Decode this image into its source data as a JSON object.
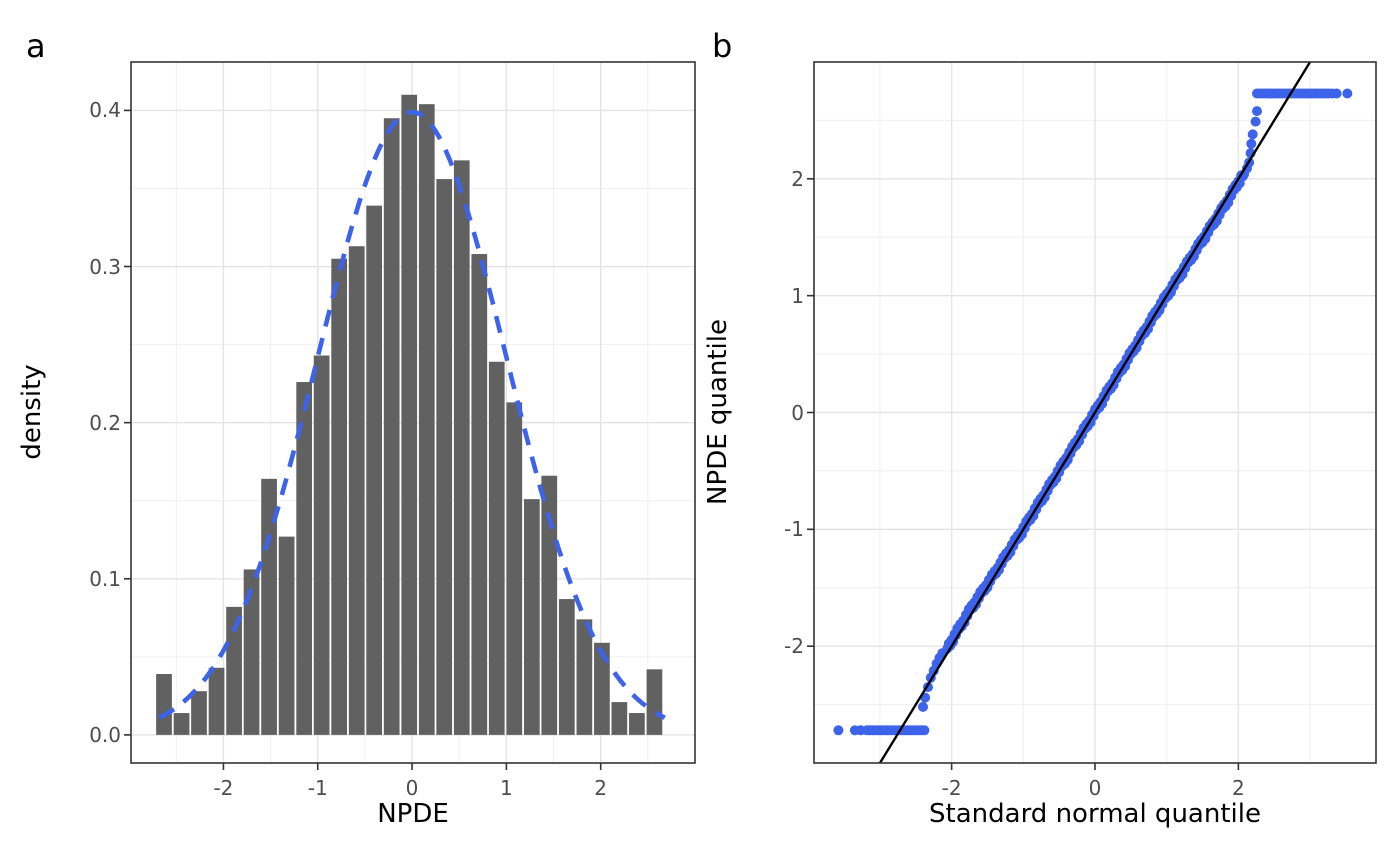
{
  "figure": {
    "panel_a_letter": "a",
    "panel_b_letter": "b",
    "background": "#FFFFFF",
    "colors": {
      "bar_fill": "#616161",
      "blue": "#3D63EB",
      "reference_line": "#000000",
      "grid_major": "#E4E4E4",
      "grid_minor": "#EFEFEF",
      "panel_border": "#333333",
      "tick_mark": "#333333",
      "tick_label": "#4D4D4D",
      "axis_title": "#000000"
    }
  },
  "chart_data": [
    {
      "id": "panel_a",
      "type": "bar",
      "subtype": "histogram_with_normal_density_overlay",
      "title": "",
      "xlabel": "NPDE",
      "ylabel": "density",
      "xlim": [
        -2.98,
        3.0
      ],
      "ylim": [
        -0.018,
        0.431
      ],
      "grid": true,
      "x_major_ticks": [
        -2,
        -1,
        0,
        1,
        2
      ],
      "x_tick_labels": [
        "-2",
        "-1",
        "0",
        "1",
        "2"
      ],
      "x_minor_ticks": [
        -2.5,
        -1.5,
        -0.5,
        0.5,
        1.5,
        2.5
      ],
      "y_major_ticks": [
        0,
        0.1,
        0.2,
        0.3,
        0.4
      ],
      "y_tick_labels": [
        "0.0",
        "0.1",
        "0.2",
        "0.3",
        "0.4"
      ],
      "y_minor_ticks": [
        0.05,
        0.15,
        0.25,
        0.35
      ],
      "binwidth": 0.1857,
      "bin_centers": [
        -2.63,
        -2.444,
        -2.259,
        -2.073,
        -1.887,
        -1.702,
        -1.516,
        -1.33,
        -1.144,
        -0.959,
        -0.773,
        -0.587,
        -0.402,
        -0.216,
        -0.03,
        0.156,
        0.341,
        0.527,
        0.713,
        0.898,
        1.084,
        1.27,
        1.455,
        1.641,
        1.827,
        2.013,
        2.198,
        2.384,
        2.57
      ],
      "densities": [
        0.039,
        0.014,
        0.028,
        0.043,
        0.082,
        0.106,
        0.164,
        0.127,
        0.226,
        0.243,
        0.305,
        0.313,
        0.339,
        0.395,
        0.41,
        0.404,
        0.356,
        0.368,
        0.308,
        0.239,
        0.213,
        0.151,
        0.166,
        0.087,
        0.074,
        0.059,
        0.021,
        0.014,
        0.042
      ],
      "normal_curve": {
        "mean": 0,
        "sd": 1,
        "x_from": -2.68,
        "x_to": 2.68,
        "style": "dashed",
        "peak_density": 0.399
      }
    },
    {
      "id": "panel_b",
      "type": "scatter",
      "subtype": "qq_plot",
      "title": "",
      "xlabel": "Standard normal quantile",
      "ylabel": "NPDE quantile",
      "xlim": [
        -3.92,
        3.92
      ],
      "ylim": [
        -3.0,
        3.0
      ],
      "grid": true,
      "x_major_ticks": [
        -2,
        0,
        2
      ],
      "x_tick_labels": [
        "-2",
        "0",
        "2"
      ],
      "x_minor_ticks": [
        -3,
        -1,
        1,
        3
      ],
      "y_major_ticks": [
        -2,
        -1,
        0,
        1,
        2
      ],
      "y_tick_labels": [
        "-2",
        "-1",
        "0",
        "1",
        "2"
      ],
      "y_minor_ticks": [
        -2.5,
        -1.5,
        -0.5,
        0.5,
        1.5,
        2.5
      ],
      "identity_line": {
        "x1": -3,
        "y1": -3,
        "x2": 3,
        "y2": 3
      },
      "diagonal_band": {
        "rule": "y = x + deviation(x) + jitter",
        "x_from": -2.06,
        "x_to": 2.06,
        "step": 0.02,
        "deviation_anchors": [
          [
            -2.06,
            0.04
          ],
          [
            -1.75,
            0.05
          ],
          [
            -1.4,
            0.02
          ],
          [
            -1.0,
            0.0
          ],
          [
            0.9,
            0.0
          ],
          [
            1.4,
            -0.02
          ],
          [
            1.8,
            -0.04
          ],
          [
            2.06,
            -0.03
          ]
        ],
        "jitter_cycle": [
          0,
          0.022,
          -0.018,
          0.012,
          -0.025,
          0.02,
          -0.01,
          0.028
        ]
      },
      "lower_tail_points": [
        [
          -2.4,
          -2.52
        ],
        [
          -2.37,
          -2.44
        ],
        [
          -2.33,
          -2.35
        ],
        [
          -2.29,
          -2.27
        ],
        [
          -2.25,
          -2.21
        ],
        [
          -2.21,
          -2.15
        ],
        [
          -2.17,
          -2.1
        ],
        [
          -2.13,
          -2.06
        ]
      ],
      "upper_tail_points": [
        [
          2.08,
          2.04
        ],
        [
          2.12,
          2.09
        ],
        [
          2.15,
          2.14
        ],
        [
          2.17,
          2.22
        ],
        [
          2.18,
          2.3
        ],
        [
          2.2,
          2.38
        ],
        [
          2.24,
          2.49
        ],
        [
          2.26,
          2.58
        ]
      ],
      "bottom_run": {
        "y": -2.72,
        "x_dense_from": -3.18,
        "x_dense_to": -2.38,
        "step": 0.04,
        "x_extra": [
          -3.58,
          -3.35,
          -3.27
        ]
      },
      "top_run": {
        "y": 2.73,
        "x_dense_from": 2.26,
        "x_dense_to": 3.26,
        "step": 0.04,
        "x_extra": [
          3.31,
          3.37,
          3.52
        ]
      },
      "point_radius_px": 5
    }
  ]
}
